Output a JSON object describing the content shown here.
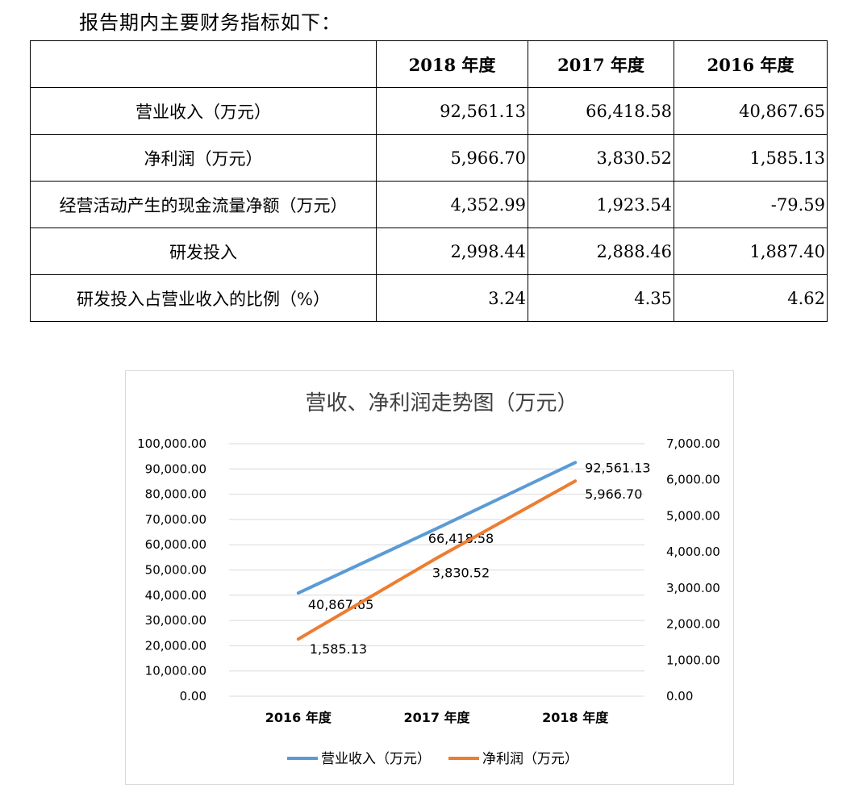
{
  "intro": "报告期内主要财务指标如下：",
  "table": {
    "columns": [
      "",
      "2018 年度",
      "2017 年度",
      "2016 年度"
    ],
    "rows": [
      {
        "label": "营业收入（万元）",
        "values": [
          "92,561.13",
          "66,418.58",
          "40,867.65"
        ]
      },
      {
        "label": "净利润（万元）",
        "values": [
          "5,966.70",
          "3,830.52",
          "1,585.13"
        ]
      },
      {
        "label": "经营活动产生的现金流量净额（万元）",
        "values": [
          "4,352.99",
          "1,923.54",
          "-79.59"
        ]
      },
      {
        "label": "研发投入",
        "values": [
          "2,998.44",
          "2,888.46",
          "1,887.40"
        ]
      },
      {
        "label": "研发投入占营业收入的比例（%）",
        "values": [
          "3.24",
          "4.35",
          "4.62"
        ]
      }
    ]
  },
  "chart_data": {
    "type": "line",
    "title": "营收、净利润走势图（万元）",
    "categories": [
      "2016 年度",
      "2017 年度",
      "2018 年度"
    ],
    "y_left": {
      "min": 0,
      "max": 100000,
      "ticks": [
        "0.00",
        "10,000.00",
        "20,000.00",
        "30,000.00",
        "40,000.00",
        "50,000.00",
        "60,000.00",
        "70,000.00",
        "80,000.00",
        "90,000.00",
        "100,000.00"
      ]
    },
    "y_right": {
      "min": 0,
      "max": 7000,
      "ticks": [
        "0.00",
        "1,000.00",
        "2,000.00",
        "3,000.00",
        "4,000.00",
        "5,000.00",
        "6,000.00",
        "7,000.00"
      ]
    },
    "series": [
      {
        "name": "营业收入（万元）",
        "axis": "left",
        "color": "#5b9bd5",
        "values": [
          40867.65,
          66418.58,
          92561.13
        ],
        "labels": [
          "40,867.65",
          "66,418.58",
          "92,561.13"
        ]
      },
      {
        "name": "净利润（万元）",
        "axis": "right",
        "color": "#ed7d31",
        "values": [
          1585.13,
          3830.52,
          5966.7
        ],
        "labels": [
          "1,585.13",
          "3,830.52",
          "5,966.70"
        ]
      }
    ],
    "grid": true,
    "legend": "bottom"
  }
}
